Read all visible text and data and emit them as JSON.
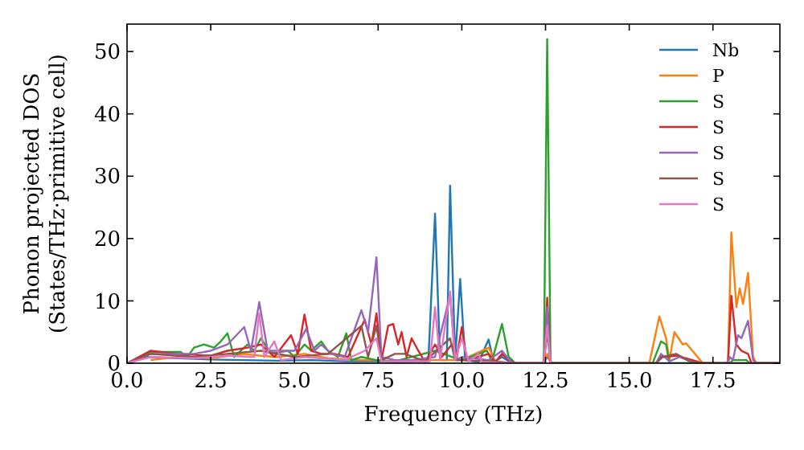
{
  "chart_data": {
    "type": "line",
    "xlabel": "Frequency (THz)",
    "ylabel": "Phonon projected DOS\n(States/THz·primitive cell)",
    "xlim": [
      0,
      19.5
    ],
    "ylim": [
      0,
      54.4
    ],
    "xticks": [
      {
        "value": 0,
        "label": "0.0"
      },
      {
        "value": 2.5,
        "label": "2.5"
      },
      {
        "value": 5,
        "label": "5.0"
      },
      {
        "value": 7.5,
        "label": "7.5"
      },
      {
        "value": 10,
        "label": "10.0"
      },
      {
        "value": 12.5,
        "label": "12.5"
      },
      {
        "value": 15,
        "label": "15.0"
      },
      {
        "value": 17.5,
        "label": "17.5"
      }
    ],
    "yticks": [
      0,
      10,
      20,
      30,
      40,
      50
    ],
    "legend": "top right",
    "grid": false,
    "series": [
      {
        "name": "Nb",
        "color": "#1f77b4",
        "x": [
          0,
          0.6,
          1.5,
          2.5,
          3.5,
          4.5,
          5.5,
          6.5,
          7.5,
          8,
          9,
          9.2,
          9.35,
          9.55,
          9.65,
          9.8,
          9.95,
          10.1,
          10.5,
          10.8,
          10.95,
          11.2,
          11.5,
          12.4,
          12.55,
          12.7,
          19.5
        ],
        "values": [
          0,
          1,
          0.8,
          0.6,
          0.5,
          0.4,
          0.5,
          0.3,
          0.3,
          0.2,
          0.3,
          24,
          0.5,
          0.5,
          28.5,
          0.5,
          13.5,
          0.5,
          0.2,
          3.8,
          0.2,
          1,
          0,
          0,
          1,
          0,
          0
        ]
      },
      {
        "name": "P",
        "color": "#ff7f0e",
        "x": [
          0.7,
          1.5,
          2.5,
          3.5,
          4,
          4.5,
          5.3,
          6,
          7,
          7.5,
          8,
          9,
          10,
          10.8,
          11,
          11.5,
          12.45,
          12.55,
          12.65,
          15.6,
          15.9,
          16.1,
          16.2,
          16.35,
          16.6,
          16.7,
          17.2,
          17.95,
          18.05,
          18.2,
          18.3,
          18.4,
          18.55,
          18.7,
          18.8,
          19.5
        ],
        "values": [
          0.5,
          1,
          0.8,
          1.5,
          1.2,
          1,
          1.5,
          0.8,
          0.5,
          0.5,
          0.3,
          0.5,
          0.5,
          2.5,
          0.3,
          0,
          0,
          1.5,
          0,
          0,
          7.5,
          4,
          0.5,
          5,
          3,
          3.2,
          0,
          0,
          21,
          9,
          12,
          9.5,
          14.5,
          1,
          0,
          0
        ]
      },
      {
        "name": "S",
        "color": "#2ca02c",
        "x": [
          0,
          0.7,
          1.6,
          1.8,
          2,
          2.3,
          2.6,
          2.8,
          3,
          3.2,
          3.6,
          3.8,
          4,
          4.3,
          4.8,
          5,
          5.3,
          5.5,
          5.8,
          6,
          6.3,
          6.55,
          6.7,
          7,
          7.45,
          8,
          9.2,
          9.7,
          10,
          10.75,
          10.9,
          11.2,
          11.4,
          11.6,
          12.45,
          12.55,
          12.65,
          15.7,
          15.95,
          16.1,
          16.2,
          18,
          18.1,
          18.5,
          18.6,
          19.5
        ],
        "values": [
          0,
          1.8,
          1.8,
          1,
          2.5,
          3,
          2.5,
          3.5,
          4.8,
          1,
          3,
          2,
          4,
          1.5,
          2,
          1,
          3,
          2,
          3.5,
          2,
          1,
          4.8,
          0.5,
          1,
          0.5,
          0.3,
          2,
          1,
          0.5,
          2,
          0.3,
          6.3,
          1,
          0,
          0,
          52,
          0,
          0,
          3.5,
          3,
          0,
          0,
          0.5,
          0.5,
          0,
          0
        ]
      },
      {
        "name": "S",
        "color": "#d62728",
        "x": [
          0,
          0.7,
          1.5,
          2.5,
          3,
          3.6,
          4,
          4.4,
          4.9,
          5.1,
          5.3,
          5.5,
          5.8,
          6.2,
          6.6,
          7.1,
          7.3,
          7.45,
          7.6,
          7.8,
          7.95,
          8.1,
          8.2,
          8.35,
          8.5,
          8.7,
          8.9,
          9.2,
          9.4,
          9.7,
          9.85,
          10,
          10.15,
          10.8,
          11,
          11.2,
          11.4,
          11.6,
          12.45,
          12.55,
          12.65,
          15.8,
          15.95,
          16.4,
          16.7,
          17.2,
          17.95,
          18.05,
          18.2,
          18.35,
          18.55,
          18.65,
          19.5
        ],
        "values": [
          0,
          2,
          1.5,
          1.2,
          2,
          2.5,
          3,
          1,
          4.5,
          1.5,
          7.8,
          2,
          1.5,
          1.5,
          1,
          7,
          3,
          8,
          0.5,
          6,
          6.3,
          3,
          5,
          1,
          4,
          2,
          0.2,
          3,
          1,
          3,
          1,
          5.8,
          0.5,
          1.5,
          0.2,
          1.5,
          0.5,
          0,
          0,
          10.5,
          0,
          0,
          1,
          1.2,
          0.8,
          0,
          0,
          10.8,
          3,
          2,
          1.5,
          0,
          0
        ]
      },
      {
        "name": "S",
        "color": "#9467bd",
        "x": [
          0,
          0.7,
          2,
          2.5,
          3,
          3.5,
          3.7,
          3.95,
          4.2,
          4.5,
          5,
          5.35,
          5.6,
          5.8,
          6.1,
          6.5,
          7,
          7.2,
          7.45,
          7.6,
          8,
          8.5,
          9.2,
          9.65,
          9.8,
          10,
          10.8,
          11.2,
          11.5,
          12.45,
          12.55,
          12.65,
          15.8,
          15.95,
          16.2,
          16.5,
          17,
          17.95,
          18,
          18.1,
          18.25,
          18.35,
          18.55,
          18.7,
          18.8,
          19.5
        ],
        "values": [
          0,
          1.5,
          1.5,
          2,
          3,
          5.8,
          2,
          9.8,
          2,
          2,
          2,
          5.5,
          2,
          3,
          1.5,
          1,
          8.5,
          5,
          17,
          1,
          0.5,
          0.5,
          1,
          11,
          0.5,
          1,
          0.5,
          2,
          0,
          0,
          9,
          0,
          0,
          1.5,
          0.3,
          1,
          0,
          0,
          1,
          0.5,
          4.5,
          4,
          6.8,
          0.5,
          0,
          0
        ]
      },
      {
        "name": "S",
        "color": "#8c564b",
        "x": [
          0,
          0.7,
          2,
          3,
          4,
          5,
          6,
          7,
          7.2,
          7.45,
          7.6,
          8,
          8.3,
          8.9,
          9.65,
          9.8,
          11,
          11.5,
          12.45,
          12.55,
          12.65,
          15.8,
          16,
          16.4,
          16.8,
          17.2,
          19.5
        ],
        "values": [
          0,
          1.5,
          1,
          1.5,
          2,
          1,
          1.5,
          6,
          1,
          6,
          0.5,
          1.5,
          1.5,
          0.3,
          4,
          0.5,
          0.3,
          0,
          0,
          5,
          0,
          0,
          1,
          1.5,
          0.3,
          0,
          0
        ]
      },
      {
        "name": "S",
        "color": "#e377c2",
        "x": [
          0,
          0.7,
          2,
          3,
          3.8,
          3.95,
          4.1,
          4.4,
          4.6,
          5.3,
          6.5,
          7.1,
          7.45,
          7.6,
          7.8,
          9.05,
          9.2,
          9.35,
          9.65,
          9.8,
          10,
          10.2,
          10.5,
          10.6,
          11.5,
          12.45,
          12.55,
          12.65
        ],
        "values": [
          0,
          1,
          0.8,
          1.2,
          1,
          8,
          1,
          3.5,
          0.5,
          1,
          0.5,
          2,
          4,
          0.3,
          0.3,
          0.3,
          9,
          0.5,
          11.5,
          0.5,
          4,
          0.3,
          1.5,
          0.2,
          0,
          0,
          6,
          0
        ]
      }
    ]
  }
}
